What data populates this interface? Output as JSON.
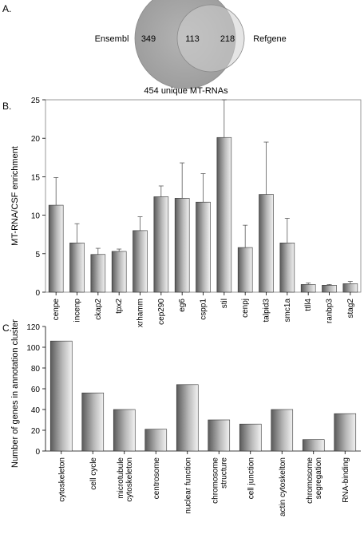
{
  "chart_data": [
    {
      "panel": "A.",
      "type": "venn",
      "sets": [
        {
          "name": "Ensembl",
          "only": 349
        },
        {
          "name": "Refgene",
          "only": 218
        }
      ],
      "intersection": 113,
      "caption": "454 unique MT-RNAs"
    },
    {
      "panel": "B.",
      "type": "bar",
      "categories": [
        "cenpe",
        "incenp",
        "ckap2",
        "tpx2",
        "xrhamm",
        "cep290",
        "eg6",
        "cspp1",
        "stil",
        "cenpj",
        "talpid3",
        "smc1a",
        "ttll4",
        "ranbp3",
        "stag2"
      ],
      "values": [
        11.3,
        6.4,
        4.9,
        5.3,
        8.0,
        12.4,
        12.2,
        11.7,
        20.1,
        5.8,
        12.7,
        6.4,
        1.0,
        0.9,
        1.1
      ],
      "errors": [
        3.6,
        2.5,
        0.8,
        0.3,
        1.8,
        1.4,
        4.6,
        3.7,
        4.9,
        2.9,
        6.8,
        3.2,
        0.2,
        0.1,
        0.3
      ],
      "ylabel": "MT-RNA/CSF enrichment",
      "ylim": [
        0,
        25
      ],
      "yticks": [
        0,
        5,
        10,
        15,
        20,
        25
      ]
    },
    {
      "panel": "C.",
      "type": "bar",
      "categories": [
        "cytoskeleton",
        "cell cycle",
        "microtubule cytoskeleton",
        "centrosome",
        "nuclear function",
        "chromosome structure",
        "cell junction",
        "actin cytoskelton",
        "chromosome segregation",
        "RNA-binding"
      ],
      "category_lines": [
        [
          "cytoskeleton"
        ],
        [
          "cell cycle"
        ],
        [
          "microtubule",
          "cytoskeleton"
        ],
        [
          "centrosome"
        ],
        [
          "nuclear function"
        ],
        [
          "chromosome",
          "structure"
        ],
        [
          "cell junction"
        ],
        [
          "actin cytoskelton"
        ],
        [
          "chromosome",
          "segregation"
        ],
        [
          "RNA-binding"
        ]
      ],
      "values": [
        106,
        56,
        40,
        21,
        64,
        30,
        26,
        40,
        11,
        36
      ],
      "ylabel": "Number of genes in annotation cluster",
      "ylim": [
        0,
        120
      ],
      "yticks": [
        0,
        20,
        40,
        60,
        80,
        100,
        120
      ]
    }
  ]
}
